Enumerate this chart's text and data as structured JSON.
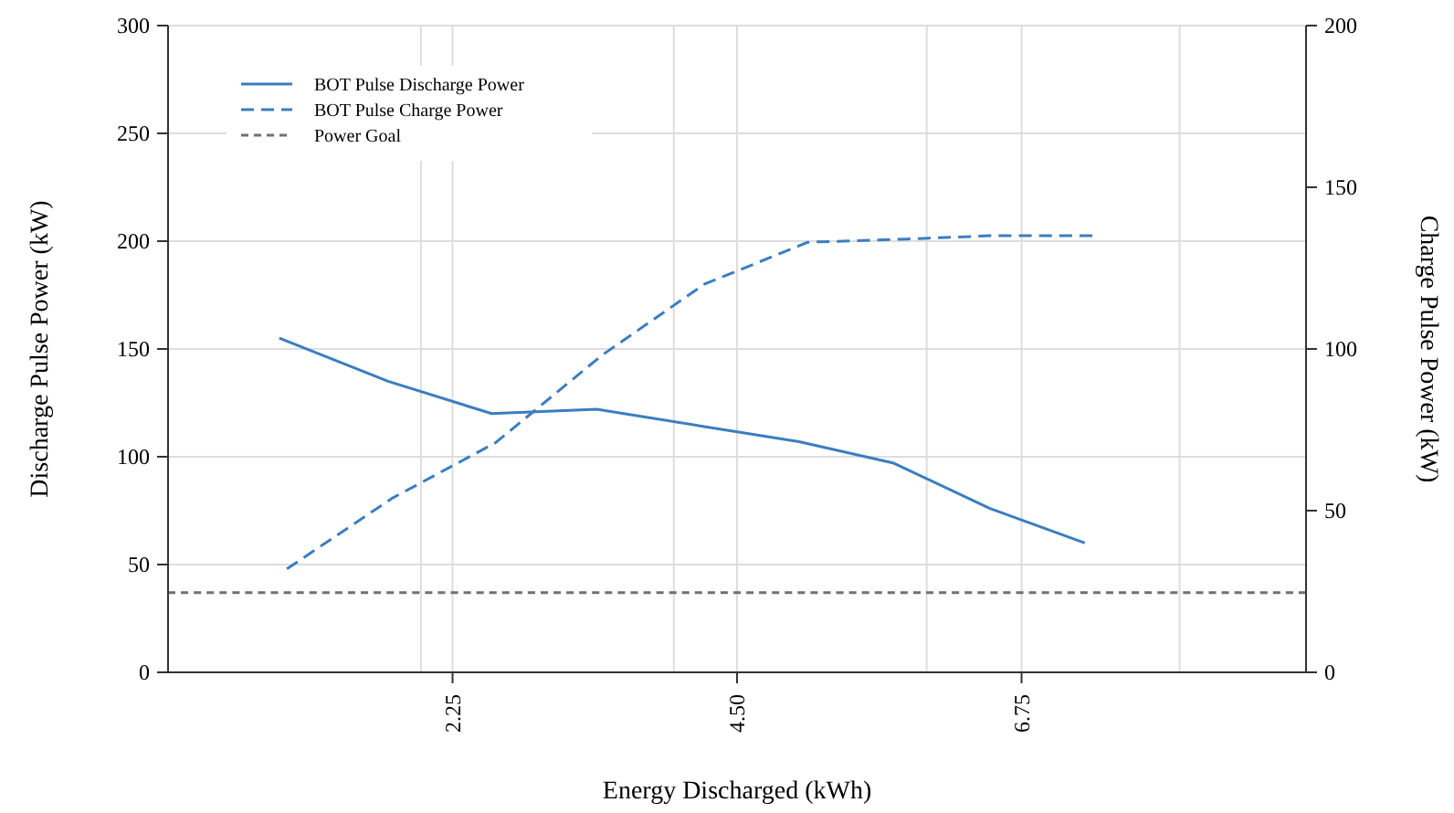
{
  "chart_data": {
    "type": "line",
    "xlabel": "Energy Discharged (kWh)",
    "ylabel": "Discharge Pulse Power (kW)",
    "y2label": "Charge Pulse Power (kW)",
    "xlim": [
      0,
      9
    ],
    "xticks": [
      {
        "value": 2,
        "label": null
      },
      {
        "value": 2.25,
        "label": "2.25"
      },
      {
        "value": 4,
        "label": null
      },
      {
        "value": 4.5,
        "label": "4.50"
      },
      {
        "value": 6,
        "label": null
      },
      {
        "value": 6.75,
        "label": "6.75"
      },
      {
        "value": 8,
        "label": null
      }
    ],
    "ylim": [
      0,
      300
    ],
    "yticks": [
      0,
      50,
      100,
      150,
      200,
      250,
      300
    ],
    "y2lim": [
      0,
      200
    ],
    "y2ticks": [
      0,
      50,
      100,
      150,
      200
    ],
    "grid": true,
    "legend": "top left",
    "series": [
      {
        "name": "BOT Pulse Discharge Power",
        "color": "#3a7ebf",
        "line_style": "solid",
        "x": [
          0.88,
          1.74,
          2.56,
          3.39,
          4.24,
          4.99,
          5.74,
          6.5,
          7.25
        ],
        "values": [
          155,
          135,
          120,
          122,
          114,
          107,
          97,
          76,
          60
        ]
      },
      {
        "name": "BOT Pulse Charge Power",
        "color": "#3a7ebf",
        "line_style": "dashed",
        "axis": "y2",
        "x": [
          0.94,
          1.78,
          2.59,
          3.43,
          4.24,
          5.06,
          5.84,
          6.5,
          7.31
        ],
        "values": [
          32,
          54,
          71,
          98,
          120,
          133,
          134,
          135,
          135
        ]
      },
      {
        "name": "Power Goal",
        "color": "#707070",
        "line_style": "dotted",
        "x": [
          0,
          9
        ],
        "values": [
          37,
          37
        ]
      }
    ]
  }
}
